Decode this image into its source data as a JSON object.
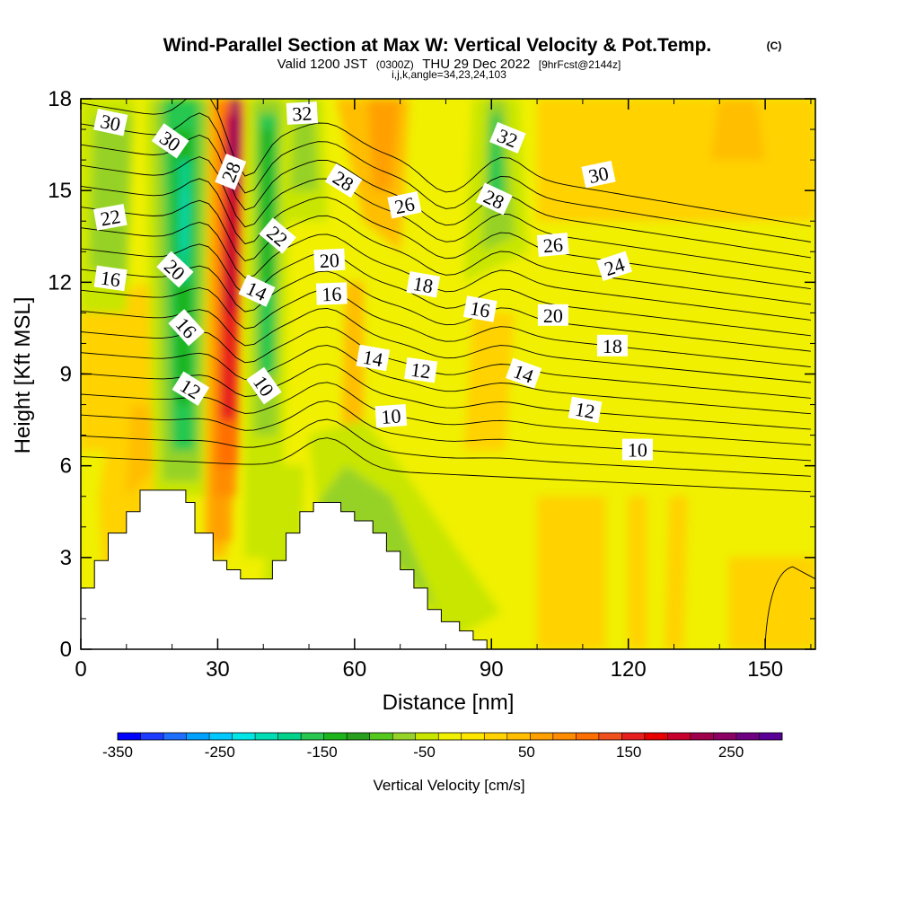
{
  "chart_data": {
    "type": "heatmap",
    "title": "Wind-Parallel Section at Max W: Vertical Velocity & Pot.Temp.",
    "title_mark": "(C)",
    "subtitle_main": "Valid 1200 JST",
    "subtitle_z": "(0300Z)",
    "subtitle_date": "THU 29 Dec 2022",
    "subtitle_fcst": "[9hrFcst@2144z]",
    "subtitle_indices": "i,j,k,angle=34,23,24,103",
    "xlabel": "Distance [nm]",
    "ylabel": "Height [Kft MSL]",
    "xlim": [
      0,
      161
    ],
    "ylim": [
      0,
      18
    ],
    "x_ticks": [
      "0",
      "30",
      "60",
      "90",
      "120",
      "150"
    ],
    "x_tick_values": [
      0,
      30,
      60,
      90,
      120,
      150
    ],
    "y_ticks": [
      "0",
      "3",
      "6",
      "9",
      "12",
      "15",
      "18"
    ],
    "y_tick_values": [
      0,
      3,
      6,
      9,
      12,
      15,
      18
    ],
    "colorbar": {
      "title": "Vertical Velocity [cm/s]",
      "range": [
        -350,
        300
      ],
      "step": 25,
      "labels": [
        "-350",
        "-250",
        "-150",
        "-50",
        "50",
        "150",
        "250"
      ],
      "label_values": [
        -350,
        -250,
        -150,
        -50,
        50,
        150,
        250
      ],
      "colors": [
        "#0000ff",
        "#1e3cff",
        "#1e6eff",
        "#00a0ff",
        "#00c8ff",
        "#00e6e6",
        "#00dcb4",
        "#00d28c",
        "#28c850",
        "#1eb41e",
        "#28a01e",
        "#55c81e",
        "#96d228",
        "#c8e600",
        "#f0f000",
        "#ffe600",
        "#ffd200",
        "#ffbe00",
        "#ffa000",
        "#ff8c00",
        "#ff6e00",
        "#f0501e",
        "#e61e1e",
        "#e60000",
        "#c8002d",
        "#a0004b",
        "#8c0064",
        "#6e0082",
        "#5a0096"
      ]
    },
    "terrain_kft": [
      [
        0,
        2.0
      ],
      [
        3,
        2.0
      ],
      [
        3,
        2.9
      ],
      [
        6,
        2.9
      ],
      [
        6,
        3.8
      ],
      [
        10,
        3.8
      ],
      [
        10,
        4.5
      ],
      [
        13,
        4.5
      ],
      [
        13,
        5.2
      ],
      [
        23,
        5.2
      ],
      [
        23,
        4.8
      ],
      [
        25,
        4.8
      ],
      [
        25,
        3.8
      ],
      [
        29,
        3.8
      ],
      [
        29,
        2.9
      ],
      [
        32,
        2.9
      ],
      [
        32,
        2.6
      ],
      [
        35,
        2.6
      ],
      [
        35,
        2.3
      ],
      [
        42,
        2.3
      ],
      [
        42,
        2.9
      ],
      [
        45,
        2.9
      ],
      [
        45,
        3.8
      ],
      [
        48,
        3.8
      ],
      [
        48,
        4.5
      ],
      [
        51,
        4.5
      ],
      [
        51,
        4.8
      ],
      [
        57,
        4.8
      ],
      [
        57,
        4.5
      ],
      [
        60,
        4.5
      ],
      [
        60,
        4.2
      ],
      [
        64,
        4.2
      ],
      [
        64,
        3.8
      ],
      [
        67,
        3.8
      ],
      [
        67,
        3.2
      ],
      [
        70,
        3.2
      ],
      [
        70,
        2.6
      ],
      [
        73,
        2.6
      ],
      [
        73,
        2.0
      ],
      [
        76,
        2.0
      ],
      [
        76,
        1.3
      ],
      [
        79,
        1.3
      ],
      [
        79,
        0.9
      ],
      [
        83,
        0.9
      ],
      [
        83,
        0.6
      ],
      [
        86,
        0.6
      ],
      [
        86,
        0.3
      ],
      [
        89,
        0.3
      ],
      [
        89,
        0.0
      ]
    ],
    "contour_labels": [
      {
        "text": "30",
        "x": 6.5,
        "y": 17.2,
        "angle": 12
      },
      {
        "text": "30",
        "x": 19.5,
        "y": 16.6,
        "angle": 35
      },
      {
        "text": "28",
        "x": 33,
        "y": 15.6,
        "angle": -68
      },
      {
        "text": "32",
        "x": 48.5,
        "y": 17.5,
        "angle": -3
      },
      {
        "text": "32",
        "x": 93.5,
        "y": 16.7,
        "angle": 22
      },
      {
        "text": "28",
        "x": 57.5,
        "y": 15.3,
        "angle": 32
      },
      {
        "text": "26",
        "x": 71,
        "y": 14.5,
        "angle": -12
      },
      {
        "text": "28",
        "x": 90.5,
        "y": 14.7,
        "angle": 25
      },
      {
        "text": "30",
        "x": 113.5,
        "y": 15.5,
        "angle": -12
      },
      {
        "text": "22",
        "x": 6.5,
        "y": 14.1,
        "angle": -10
      },
      {
        "text": "22",
        "x": 43,
        "y": 13.5,
        "angle": 40
      },
      {
        "text": "20",
        "x": 20.5,
        "y": 12.4,
        "angle": 43
      },
      {
        "text": "20",
        "x": 54.5,
        "y": 12.7,
        "angle": -3
      },
      {
        "text": "26",
        "x": 103.5,
        "y": 13.2,
        "angle": -5
      },
      {
        "text": "24",
        "x": 117,
        "y": 12.5,
        "angle": -18
      },
      {
        "text": "16",
        "x": 6.5,
        "y": 12.1,
        "angle": 8
      },
      {
        "text": "14",
        "x": 38.5,
        "y": 11.7,
        "angle": 25
      },
      {
        "text": "16",
        "x": 55,
        "y": 11.6,
        "angle": -2
      },
      {
        "text": "18",
        "x": 75,
        "y": 11.9,
        "angle": 10
      },
      {
        "text": "16",
        "x": 87.5,
        "y": 11.1,
        "angle": 10
      },
      {
        "text": "20",
        "x": 103.5,
        "y": 10.9,
        "angle": 0
      },
      {
        "text": "16",
        "x": 23,
        "y": 10.5,
        "angle": 48
      },
      {
        "text": "18",
        "x": 116.5,
        "y": 9.9,
        "angle": 0
      },
      {
        "text": "14",
        "x": 64,
        "y": 9.5,
        "angle": 10
      },
      {
        "text": "12",
        "x": 74.5,
        "y": 9.1,
        "angle": 8
      },
      {
        "text": "14",
        "x": 97,
        "y": 9.0,
        "angle": 20
      },
      {
        "text": "12",
        "x": 24,
        "y": 8.5,
        "angle": 32
      },
      {
        "text": "10",
        "x": 40,
        "y": 8.6,
        "angle": 55
      },
      {
        "text": "12",
        "x": 110.5,
        "y": 7.8,
        "angle": 10
      },
      {
        "text": "10",
        "x": 68,
        "y": 7.6,
        "angle": -4
      },
      {
        "text": "10",
        "x": 122,
        "y": 6.5,
        "angle": 0
      }
    ]
  }
}
